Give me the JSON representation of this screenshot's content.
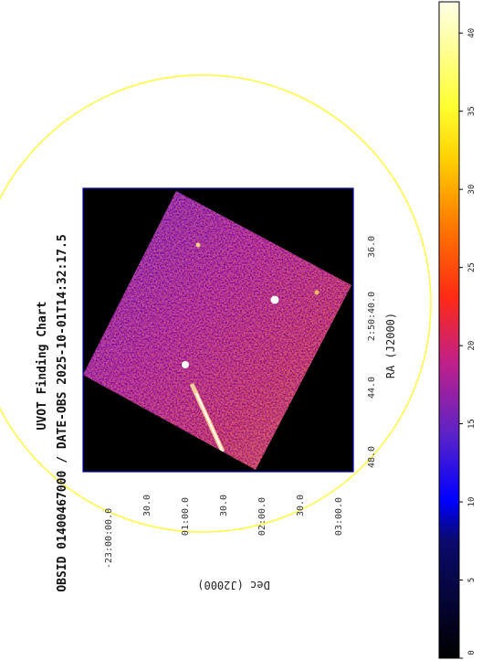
{
  "figure": {
    "title": "UVOT Finding Chart",
    "subtitle": "OBSID 01400467000 / DATE-OBS 2025-10-01T14:32:17.5",
    "xlabel": "RA (J2000)",
    "ylabel": "Dec (J2000)",
    "ra_ticks": [
      "48.0",
      "44.0",
      "2:50:40.0",
      "36.0"
    ],
    "dec_ticks": [
      "-23:00:00.0",
      "30.0",
      "01:00.0",
      "30.0",
      "02:00.0",
      "30.0",
      "03:00.0"
    ],
    "colorbar": {
      "ticks": [
        "0",
        "5",
        "10",
        "15",
        "20",
        "25",
        "30",
        "35",
        "40"
      ],
      "min": 0,
      "max": 42
    },
    "colors": {
      "circle": "#ffff33",
      "frame": "#0000aa",
      "background": "#000000"
    }
  }
}
